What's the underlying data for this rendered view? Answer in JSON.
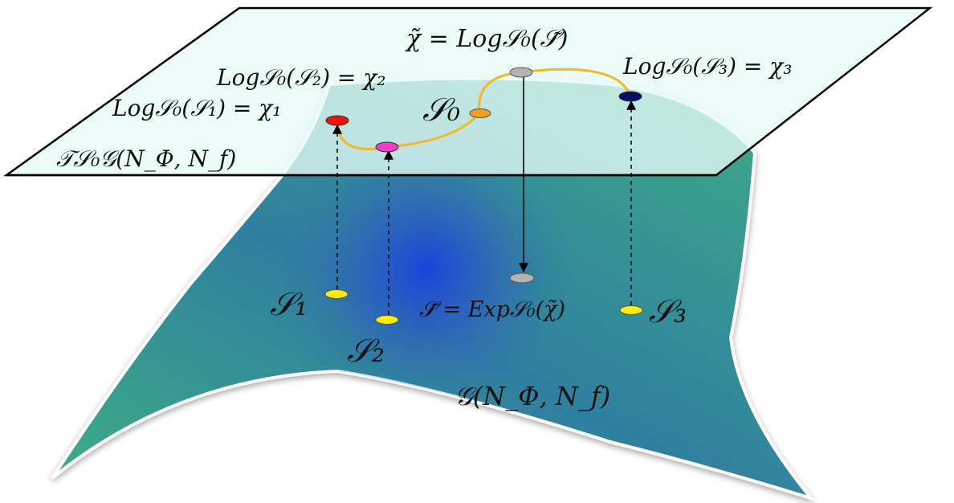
{
  "labels": {
    "tangent_space": "𝒯𝒮₀𝒢(N_Φ, N_f)",
    "manifold": "𝒢(N_Φ, N_f)",
    "chi_tilde_eq": "χ̃ = Log𝒮₀(𝒮̃)",
    "log_s1": "Log𝒮₀(𝒮₁) = χ₁",
    "log_s2": "Log𝒮₀(𝒮₂) = χ₂",
    "log_s3": "Log𝒮₀(𝒮₃) = χ₃",
    "s0": "𝒮₀",
    "s1": "𝒮₁",
    "s2": "𝒮₂",
    "s3": "𝒮₃",
    "s_tilde_eq": "𝒮̃ = Exp𝒮₀(χ̃)"
  },
  "colors": {
    "plane_fill": "#e6fbf6",
    "surface_green": "#3fae84",
    "surface_blue": "#1a3fe0",
    "curve": "#f2b829",
    "point_yellow": "#ffee00",
    "chi1": "#ee1111",
    "chi2": "#f23cc4",
    "chi3": "#0a0a6a",
    "s0_point": "#f0a020",
    "gray_point": "#b3b3b3"
  }
}
